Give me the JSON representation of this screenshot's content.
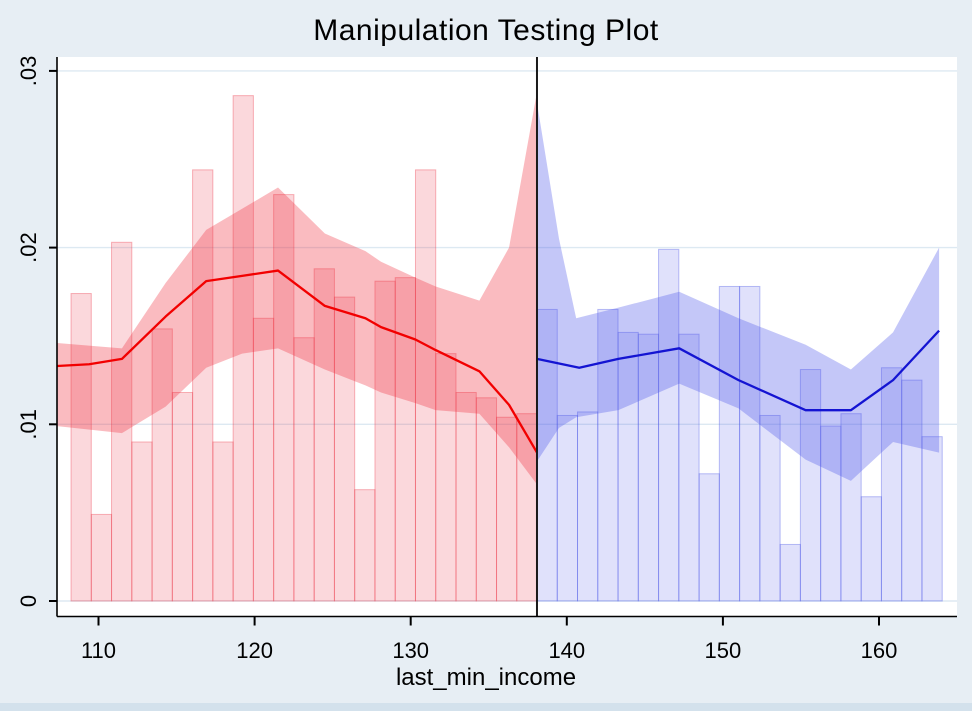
{
  "title": "Manipulation Testing Plot",
  "xlabel": "last_min_income",
  "colors": {
    "background": "#e7eef4",
    "bottom_strip": "#d3e1ec",
    "plot_background": "#ffffff",
    "gridline": "#dde9f2",
    "axis": "#000000",
    "cutoff_line": "#1a1a1a",
    "red_line": "#f20000",
    "red_band": "rgba(240,45,60,0.32)",
    "red_bar_fill": "rgba(235,40,60,0.18)",
    "red_bar_stroke": "rgba(235,40,60,0.34)",
    "blue_line": "#1414d2",
    "blue_band": "rgba(75,85,235,0.33)",
    "blue_bar_fill": "rgba(70,80,230,0.17)",
    "blue_bar_stroke": "rgba(70,80,230,0.36)"
  },
  "chart_data": {
    "type": "rd-density-manipulation-test (bar + line + area)",
    "title": "Manipulation Testing Plot",
    "xlabel": "last_min_income",
    "ylabel": "",
    "cutoff": 138.09,
    "xlim": [
      107.35,
      165.0
    ],
    "ylim": [
      0,
      0.0308
    ],
    "grid": true,
    "legend": "none",
    "x_ticks": [
      {
        "v": 110,
        "label": "110"
      },
      {
        "v": 120,
        "label": "120"
      },
      {
        "v": 130,
        "label": "130"
      },
      {
        "v": 140,
        "label": "140"
      },
      {
        "v": 150,
        "label": "150"
      },
      {
        "v": 160,
        "label": "160"
      }
    ],
    "y_ticks": [
      {
        "v": 0,
        "label": "0"
      },
      {
        "v": 0.01,
        "label": ".01"
      },
      {
        "v": 0.02,
        "label": ".02"
      },
      {
        "v": 0.03,
        "label": ".03"
      }
    ],
    "left": {
      "histogram": {
        "bin_start": 108.24,
        "bin_width": 1.298,
        "heights": [
          0.0174,
          0.0049,
          0.0203,
          0.009,
          0.0154,
          0.0118,
          0.0244,
          0.009,
          0.0286,
          0.016,
          0.023,
          0.0149,
          0.0188,
          0.0172,
          0.0063,
          0.0181,
          0.0183,
          0.0244,
          0.014,
          0.0118,
          0.0115,
          0.0104,
          0.0106
        ]
      },
      "density_line": {
        "x": [
          107.35,
          109.4,
          111.5,
          114.3,
          116.9,
          119.2,
          121.5,
          124.5,
          127.1,
          128.1,
          130.3,
          131.6,
          134.4,
          136.3,
          138.09
        ],
        "y": [
          0.0133,
          0.0134,
          0.0137,
          0.0161,
          0.0181,
          0.0184,
          0.0187,
          0.0167,
          0.016,
          0.0155,
          0.0148,
          0.0142,
          0.013,
          0.0111,
          0.0084
        ]
      },
      "confidence_band": {
        "x": [
          107.35,
          111.5,
          114.3,
          116.9,
          119.2,
          121.5,
          124.5,
          127.1,
          128.1,
          130.3,
          131.6,
          134.4,
          136.3,
          138.09
        ],
        "high": [
          0.0146,
          0.0143,
          0.018,
          0.021,
          0.0222,
          0.0234,
          0.0208,
          0.0198,
          0.0192,
          0.0183,
          0.0178,
          0.017,
          0.02,
          0.0288
        ],
        "low": [
          0.0099,
          0.0095,
          0.011,
          0.0132,
          0.014,
          0.0143,
          0.0131,
          0.0122,
          0.0118,
          0.0112,
          0.0108,
          0.0106,
          0.0087,
          0.0066
        ]
      }
    },
    "right": {
      "histogram": {
        "bin_start": 138.09,
        "bin_width": 1.298,
        "heights": [
          0.0165,
          0.0105,
          0.0107,
          0.0165,
          0.0152,
          0.0151,
          0.0199,
          0.0151,
          0.0072,
          0.0178,
          0.0178,
          0.0105,
          0.0032,
          0.0131,
          0.0099,
          0.0106,
          0.0059,
          0.0132,
          0.0125,
          0.0093
        ]
      },
      "density_line": {
        "x": [
          138.09,
          140.8,
          143.3,
          147.2,
          151.0,
          155.3,
          158.2,
          160.9,
          163.85
        ],
        "y": [
          0.0137,
          0.0132,
          0.0137,
          0.0143,
          0.0125,
          0.0108,
          0.0108,
          0.0125,
          0.0153
        ]
      },
      "confidence_band": {
        "x": [
          138.09,
          139.5,
          140.6,
          143.3,
          147.2,
          151.0,
          155.3,
          158.2,
          160.9,
          163.85
        ],
        "high": [
          0.0282,
          0.0205,
          0.016,
          0.0166,
          0.0175,
          0.016,
          0.0145,
          0.0131,
          0.0152,
          0.02
        ],
        "low": [
          0.0079,
          0.0098,
          0.0104,
          0.0108,
          0.0123,
          0.0109,
          0.008,
          0.0068,
          0.009,
          0.0084
        ]
      }
    }
  }
}
